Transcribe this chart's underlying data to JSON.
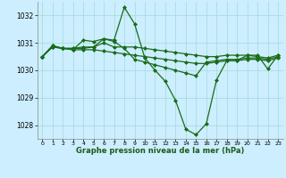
{
  "background_color": "#cceeff",
  "grid_color": "#aadddd",
  "line_color": "#1a6b1a",
  "hours": [
    0,
    1,
    2,
    3,
    4,
    5,
    6,
    7,
    8,
    9,
    10,
    11,
    12,
    13,
    14,
    15,
    16,
    17,
    18,
    19,
    20,
    21,
    22,
    23
  ],
  "series": [
    [
      1030.5,
      1030.9,
      1030.8,
      1030.8,
      1030.8,
      1030.85,
      1031.15,
      1031.1,
      1032.3,
      1031.7,
      1030.45,
      1030.0,
      1029.6,
      1028.9,
      1027.85,
      1027.65,
      1028.05,
      1029.65,
      1030.35,
      1030.35,
      1030.55,
      1030.55,
      1030.05,
      1030.55
    ],
    [
      1030.5,
      1030.9,
      1030.8,
      1030.8,
      1030.85,
      1030.85,
      1031.0,
      1030.85,
      1030.85,
      1030.85,
      1030.8,
      1030.75,
      1030.7,
      1030.65,
      1030.6,
      1030.55,
      1030.5,
      1030.5,
      1030.55,
      1030.55,
      1030.55,
      1030.5,
      1030.45,
      1030.55
    ],
    [
      1030.5,
      1030.85,
      1030.8,
      1030.75,
      1030.75,
      1030.75,
      1030.7,
      1030.65,
      1030.6,
      1030.55,
      1030.5,
      1030.45,
      1030.4,
      1030.35,
      1030.3,
      1030.25,
      1030.25,
      1030.3,
      1030.35,
      1030.35,
      1030.4,
      1030.4,
      1030.35,
      1030.45
    ],
    [
      1030.5,
      1030.85,
      1030.8,
      1030.75,
      1031.1,
      1031.05,
      1031.15,
      1031.05,
      1030.8,
      1030.4,
      1030.3,
      1030.2,
      1030.1,
      1030.0,
      1029.9,
      1029.8,
      1030.3,
      1030.35,
      1030.4,
      1030.4,
      1030.45,
      1030.45,
      1030.4,
      1030.5
    ]
  ],
  "ylim": [
    1027.5,
    1032.5
  ],
  "yticks": [
    1028,
    1029,
    1030,
    1031,
    1032
  ],
  "xtick_labels": [
    "0",
    "1",
    "2",
    "3",
    "4",
    "5",
    "6",
    "7",
    "8",
    "9",
    "10",
    "11",
    "12",
    "13",
    "14",
    "15",
    "16",
    "17",
    "18",
    "19",
    "20",
    "21",
    "22",
    "23"
  ],
  "xlabel": "Graphe pression niveau de la mer (hPa)",
  "marker": "D",
  "marker_size": 2.0,
  "line_width": 0.9
}
